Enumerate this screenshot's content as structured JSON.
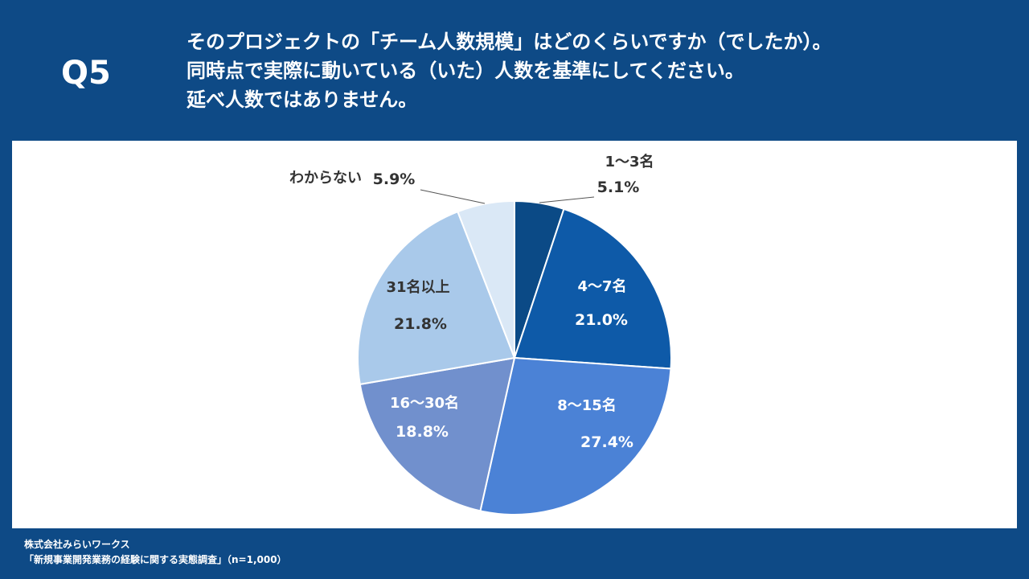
{
  "header": {
    "question_number": "Q5",
    "question_lines": [
      "そのプロジェクトの「チーム人数規模」はどのくらいですか（でしたか）。",
      "同時点で実際に動いている（いた）人数を基準にしてください。",
      "延べ人数ではありません。"
    ]
  },
  "chart_data": {
    "type": "pie",
    "title": "",
    "start_angle_deg": 0,
    "direction": "clockwise",
    "slices": [
      {
        "label": "1～3名",
        "value": 5.1,
        "value_label": "5.1%",
        "color": "#0b4a86",
        "label_color": "#333333",
        "label_position": "outside"
      },
      {
        "label": "4～7名",
        "value": 21.0,
        "value_label": "21.0%",
        "color": "#0e5aa8",
        "label_color": "#ffffff",
        "label_position": "inside"
      },
      {
        "label": "8～15名",
        "value": 27.4,
        "value_label": "27.4%",
        "color": "#4b82d6",
        "label_color": "#ffffff",
        "label_position": "inside"
      },
      {
        "label": "16～30名",
        "value": 18.8,
        "value_label": "18.8%",
        "color": "#7190cd",
        "label_color": "#ffffff",
        "label_position": "inside"
      },
      {
        "label": "31名以上",
        "value": 21.8,
        "value_label": "21.8%",
        "color": "#a9c9ea",
        "label_color": "#333333",
        "label_position": "inside"
      },
      {
        "label": "わからない",
        "value": 5.9,
        "value_label": "5.9%",
        "color": "#dae8f6",
        "label_color": "#333333",
        "label_position": "outside"
      }
    ]
  },
  "footer": {
    "company": "株式会社みらいワークス",
    "survey": "「新規事業開発業務の経験に関する実態調査」（n=1,000）"
  }
}
